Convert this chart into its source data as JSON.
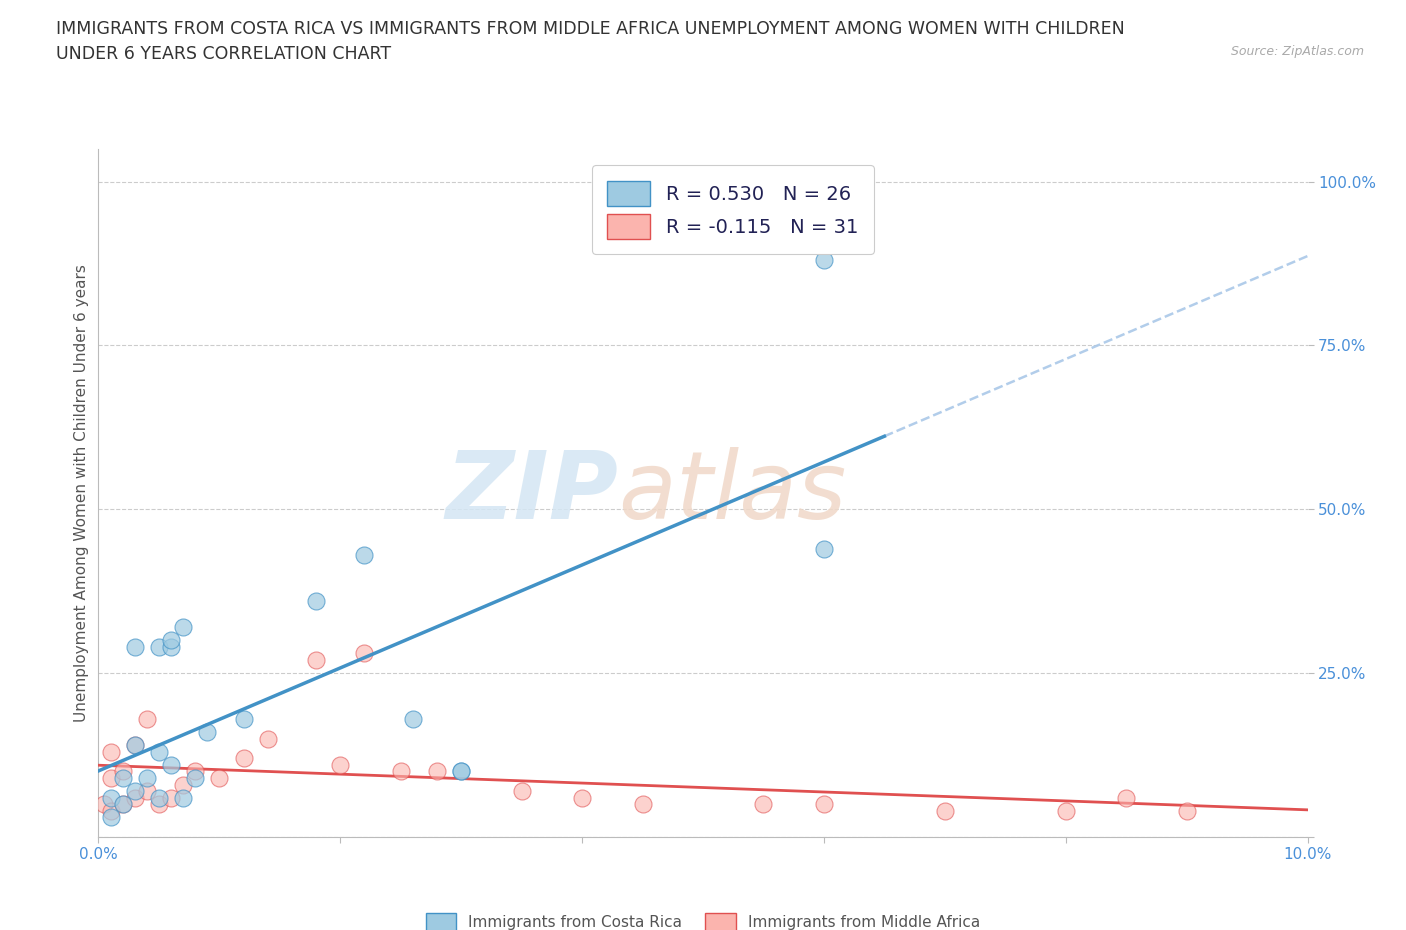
{
  "title_line1": "IMMIGRANTS FROM COSTA RICA VS IMMIGRANTS FROM MIDDLE AFRICA UNEMPLOYMENT AMONG WOMEN WITH CHILDREN",
  "title_line2": "UNDER 6 YEARS CORRELATION CHART",
  "source": "Source: ZipAtlas.com",
  "ylabel": "Unemployment Among Women with Children Under 6 years",
  "xlim": [
    0.0,
    0.1
  ],
  "ylim": [
    0.0,
    1.05
  ],
  "xtick_positions": [
    0.0,
    0.02,
    0.04,
    0.06,
    0.08,
    0.1
  ],
  "xticklabels": [
    "0.0%",
    "",
    "",
    "",
    "",
    "10.0%"
  ],
  "ytick_positions": [
    0.0,
    0.25,
    0.5,
    0.75,
    1.0
  ],
  "yticklabels": [
    "",
    "25.0%",
    "50.0%",
    "75.0%",
    "100.0%"
  ],
  "legend1_r": "R = 0.530",
  "legend1_n": "N = 26",
  "legend2_r": "R = -0.115",
  "legend2_n": "N = 31",
  "blue_fill": "#9ecae1",
  "pink_fill": "#fbb4ae",
  "blue_edge": "#4292c6",
  "pink_edge": "#e05050",
  "blue_line": "#4292c6",
  "pink_line": "#e05050",
  "dash_color": "#aac8e8",
  "tick_color": "#4a90d9",
  "label_costa_rica": "Immigrants from Costa Rica",
  "label_middle_africa": "Immigrants from Middle Africa",
  "costa_rica_x": [
    0.001,
    0.001,
    0.002,
    0.002,
    0.003,
    0.003,
    0.003,
    0.004,
    0.005,
    0.005,
    0.005,
    0.006,
    0.006,
    0.006,
    0.007,
    0.007,
    0.008,
    0.009,
    0.012,
    0.018,
    0.022,
    0.026,
    0.03,
    0.06,
    0.06,
    0.03
  ],
  "costa_rica_y": [
    0.03,
    0.06,
    0.05,
    0.09,
    0.07,
    0.14,
    0.29,
    0.09,
    0.06,
    0.13,
    0.29,
    0.11,
    0.29,
    0.3,
    0.06,
    0.32,
    0.09,
    0.16,
    0.18,
    0.36,
    0.43,
    0.18,
    0.1,
    0.44,
    0.88,
    0.1
  ],
  "middle_africa_x": [
    0.0005,
    0.001,
    0.001,
    0.001,
    0.002,
    0.002,
    0.003,
    0.003,
    0.004,
    0.004,
    0.005,
    0.006,
    0.007,
    0.008,
    0.01,
    0.012,
    0.014,
    0.018,
    0.02,
    0.022,
    0.025,
    0.028,
    0.035,
    0.04,
    0.045,
    0.055,
    0.06,
    0.07,
    0.08,
    0.085,
    0.09
  ],
  "middle_africa_y": [
    0.05,
    0.04,
    0.09,
    0.13,
    0.05,
    0.1,
    0.06,
    0.14,
    0.07,
    0.18,
    0.05,
    0.06,
    0.08,
    0.1,
    0.09,
    0.12,
    0.15,
    0.27,
    0.11,
    0.28,
    0.1,
    0.1,
    0.07,
    0.06,
    0.05,
    0.05,
    0.05,
    0.04,
    0.04,
    0.06,
    0.04
  ]
}
